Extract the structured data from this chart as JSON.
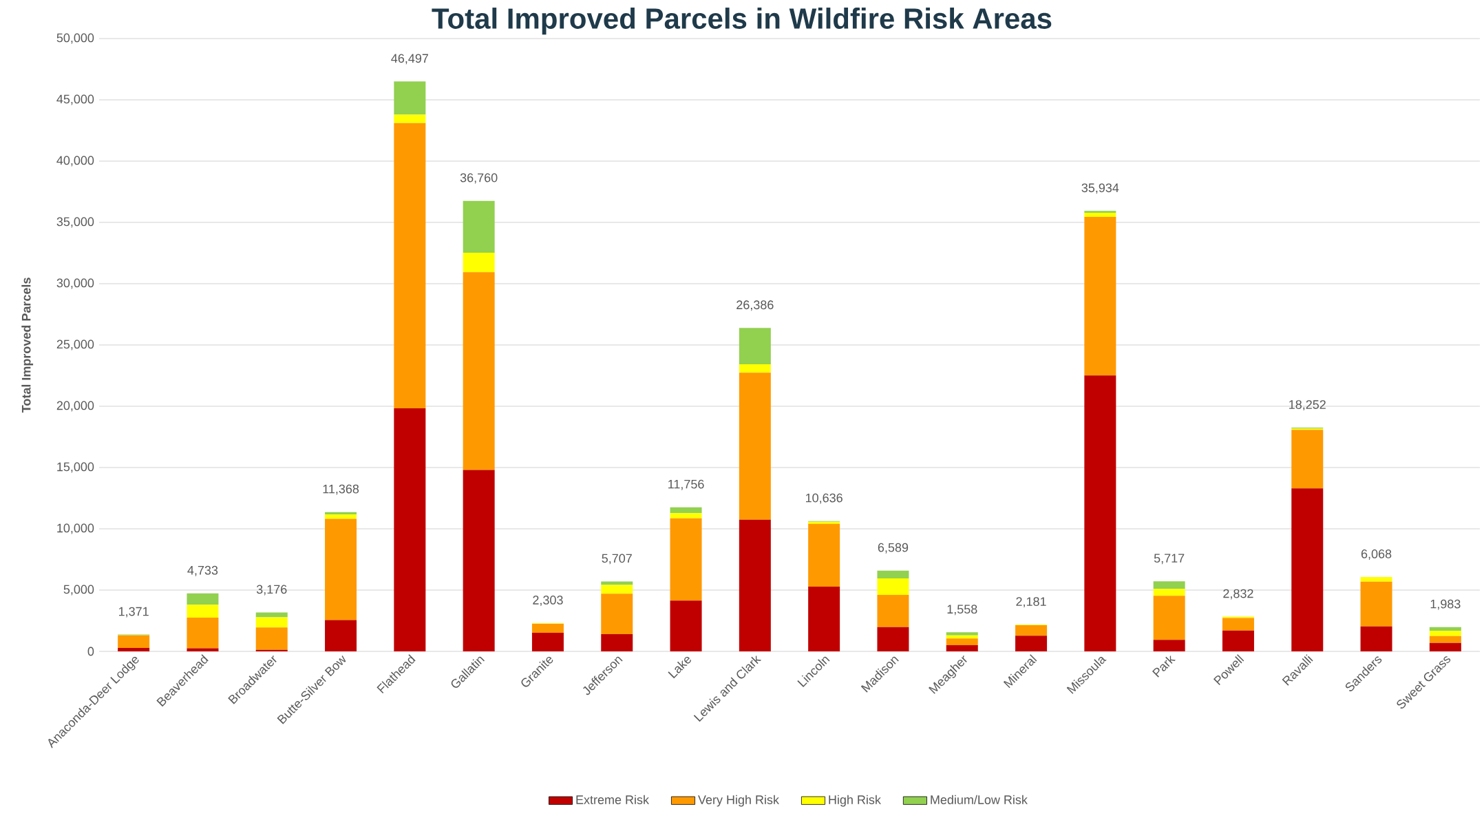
{
  "chart_data": {
    "type": "bar",
    "stacked": true,
    "title": "Total Improved Parcels in Wildfire Risk Areas",
    "ylabel": "Total Improved Parcels",
    "categories": [
      "Anaconda-Deer Lodge",
      "Beaverhead",
      "Broadwater",
      "Butte-Silver Bow",
      "Flathead",
      "Gallatin",
      "Granite",
      "Jefferson",
      "Lake",
      "Lewis and Clark",
      "Lincoln",
      "Madison",
      "Meagher",
      "Mineral",
      "Missoula",
      "Park",
      "Powell",
      "Ravalli",
      "Sanders",
      "Sweet Grass"
    ],
    "series": [
      {
        "name": "Extreme Risk",
        "color": "#c00000",
        "values": [
          280,
          250,
          130,
          2550,
          19830,
          14810,
          1510,
          1410,
          4150,
          10750,
          5280,
          1985,
          500,
          1280,
          22510,
          940,
          1700,
          13300,
          2030,
          685
        ]
      },
      {
        "name": "Very High Risk",
        "color": "#ff9900",
        "values": [
          1020,
          2500,
          1820,
          8270,
          23270,
          16130,
          740,
          3290,
          6700,
          11990,
          5120,
          2615,
          555,
          860,
          12940,
          3600,
          1020,
          4770,
          3660,
          560
        ]
      },
      {
        "name": "High Risk",
        "color": "#ffff00",
        "values": [
          20,
          1060,
          830,
          350,
          690,
          1590,
          40,
          720,
          430,
          680,
          180,
          1360,
          245,
          41,
          330,
          560,
          112,
          100,
          378,
          430
        ]
      },
      {
        "name": "Medium/Low Risk",
        "color": "#92d050",
        "values": [
          51,
          923,
          396,
          198,
          2707,
          4230,
          13,
          287,
          476,
          2966,
          56,
          629,
          258,
          0,
          154,
          617,
          0,
          82,
          0,
          308
        ]
      }
    ],
    "totals": [
      "1,371",
      "4,733",
      "3,176",
      "11,368",
      "46,497",
      "36,760",
      "2,303",
      "5,707",
      "11,756",
      "26,386",
      "10,636",
      "6,589",
      "1,558",
      "2,181",
      "35,934",
      "5,717",
      "2,832",
      "18,252",
      "6,068",
      "1,983"
    ],
    "ylim": [
      0,
      50000
    ],
    "yticks": [
      {
        "value": 0,
        "label": "0"
      },
      {
        "value": 5000,
        "label": "5,000"
      },
      {
        "value": 10000,
        "label": "10,000"
      },
      {
        "value": 15000,
        "label": "15,000"
      },
      {
        "value": 20000,
        "label": "20,000"
      },
      {
        "value": 25000,
        "label": "25,000"
      },
      {
        "value": 30000,
        "label": "30,000"
      },
      {
        "value": 35000,
        "label": "35,000"
      },
      {
        "value": 40000,
        "label": "40,000"
      },
      {
        "value": 45000,
        "label": "45,000"
      },
      {
        "value": 50000,
        "label": "50,000"
      }
    ],
    "grid": "y",
    "legend": "bottom"
  }
}
